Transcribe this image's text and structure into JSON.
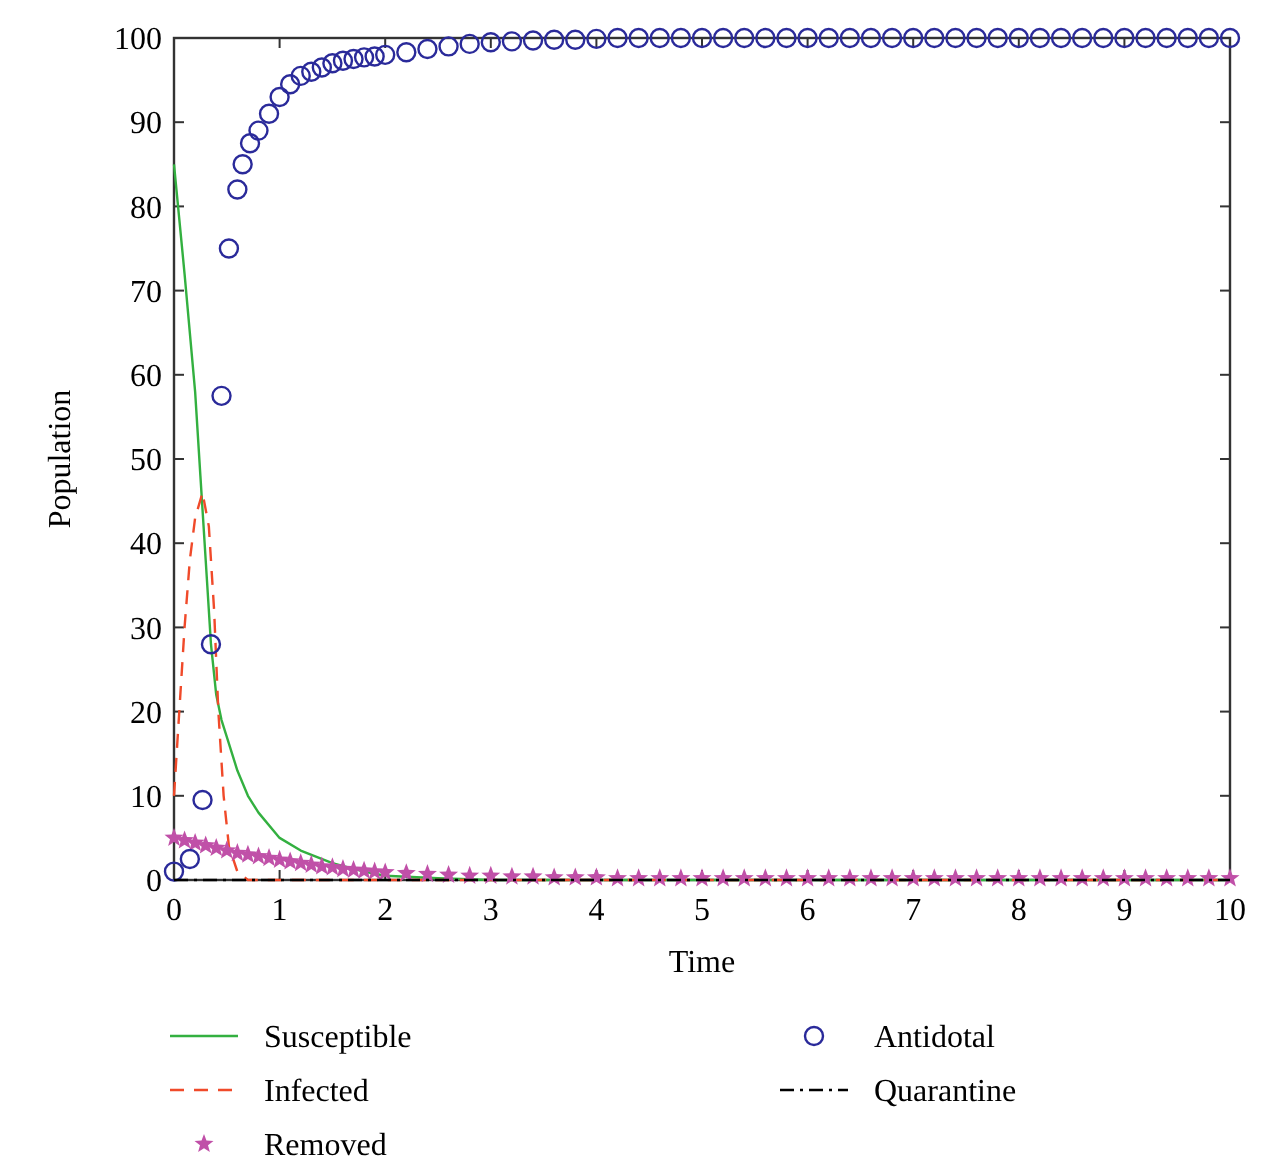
{
  "chart_data": {
    "type": "line",
    "xlabel": "Time",
    "ylabel": "Population",
    "xlim": [
      0,
      10
    ],
    "ylim": [
      0,
      100
    ],
    "xticks": [
      0,
      1,
      2,
      3,
      4,
      5,
      6,
      7,
      8,
      9,
      10
    ],
    "yticks": [
      0,
      10,
      20,
      30,
      40,
      50,
      60,
      70,
      80,
      90,
      100
    ],
    "grid": false,
    "legend": "bottom",
    "series": [
      {
        "name": "Susceptible",
        "color": "#33b040",
        "line_style": "solid",
        "marker": "none",
        "x": [
          0,
          0.1,
          0.2,
          0.25,
          0.3,
          0.35,
          0.4,
          0.45,
          0.5,
          0.6,
          0.7,
          0.8,
          1.0,
          1.2,
          1.5,
          1.8,
          2.0,
          2.5,
          3,
          4,
          5,
          6,
          7,
          8,
          9,
          10
        ],
        "values": [
          85,
          72,
          58,
          48,
          38,
          28,
          22,
          19,
          17,
          13,
          10,
          8,
          5,
          3.5,
          2,
          1,
          0.5,
          0.2,
          0,
          0,
          0,
          0,
          0,
          0,
          0,
          0
        ]
      },
      {
        "name": "Infected",
        "color": "#f04a2a",
        "line_style": "dashed",
        "marker": "none",
        "x": [
          0,
          0.05,
          0.1,
          0.15,
          0.2,
          0.27,
          0.33,
          0.38,
          0.42,
          0.47,
          0.52,
          0.6,
          0.7,
          1,
          2,
          3,
          4,
          5,
          6,
          7,
          8,
          9,
          10
        ],
        "values": [
          10,
          20,
          30,
          38,
          43,
          46,
          42,
          32,
          20,
          10,
          4,
          1,
          0,
          0,
          0,
          0,
          0,
          0,
          0,
          0,
          0,
          0,
          0
        ]
      },
      {
        "name": "Removed",
        "type": "scatter",
        "color": "#c050a8",
        "marker": "star",
        "x": [
          0,
          0.1,
          0.2,
          0.3,
          0.4,
          0.5,
          0.6,
          0.7,
          0.8,
          0.9,
          1.0,
          1.1,
          1.2,
          1.3,
          1.4,
          1.5,
          1.6,
          1.7,
          1.8,
          1.9,
          2.0,
          2.2,
          2.4,
          2.6,
          2.8,
          3.0,
          3.2,
          3.4,
          3.6,
          3.8,
          4.0,
          4.2,
          4.4,
          4.6,
          4.8,
          5.0,
          5.2,
          5.4,
          5.6,
          5.8,
          6.0,
          6.2,
          6.4,
          6.6,
          6.8,
          7.0,
          7.2,
          7.4,
          7.6,
          7.8,
          8.0,
          8.2,
          8.4,
          8.6,
          8.8,
          9.0,
          9.2,
          9.4,
          9.6,
          9.8,
          10
        ],
        "values": [
          5,
          4.7,
          4.4,
          4.1,
          3.8,
          3.5,
          3.2,
          3.0,
          2.8,
          2.6,
          2.4,
          2.2,
          2.0,
          1.8,
          1.6,
          1.5,
          1.3,
          1.2,
          1.1,
          1.0,
          0.9,
          0.8,
          0.7,
          0.6,
          0.5,
          0.5,
          0.4,
          0.4,
          0.3,
          0.3,
          0.3,
          0.2,
          0.2,
          0.2,
          0.2,
          0.2,
          0.2,
          0.2,
          0.2,
          0.2,
          0.2,
          0.2,
          0.2,
          0.2,
          0.2,
          0.2,
          0.2,
          0.2,
          0.2,
          0.2,
          0.2,
          0.2,
          0.2,
          0.2,
          0.2,
          0.2,
          0.2,
          0.2,
          0.2,
          0.2,
          0.2
        ]
      },
      {
        "name": "Antidotal",
        "type": "scatter",
        "color": "#2a2a9a",
        "marker": "circle",
        "x": [
          0,
          0.15,
          0.27,
          0.35,
          0.45,
          0.52,
          0.6,
          0.65,
          0.72,
          0.8,
          0.9,
          1.0,
          1.1,
          1.2,
          1.3,
          1.4,
          1.5,
          1.6,
          1.7,
          1.8,
          1.9,
          2.0,
          2.2,
          2.4,
          2.6,
          2.8,
          3.0,
          3.2,
          3.4,
          3.6,
          3.8,
          4.0,
          4.2,
          4.4,
          4.6,
          4.8,
          5.0,
          5.2,
          5.4,
          5.6,
          5.8,
          6.0,
          6.2,
          6.4,
          6.6,
          6.8,
          7.0,
          7.2,
          7.4,
          7.6,
          7.8,
          8.0,
          8.2,
          8.4,
          8.6,
          8.8,
          9.0,
          9.2,
          9.4,
          9.6,
          9.8,
          10
        ],
        "values": [
          1,
          2.5,
          9.5,
          28,
          57.5,
          75,
          82,
          85,
          87.5,
          89,
          91,
          93,
          94.5,
          95.5,
          96,
          96.5,
          97,
          97.3,
          97.5,
          97.7,
          97.8,
          98,
          98.3,
          98.7,
          99,
          99.3,
          99.5,
          99.6,
          99.7,
          99.8,
          99.8,
          99.9,
          100,
          100,
          100,
          100,
          100,
          100,
          100,
          100,
          100,
          100,
          100,
          100,
          100,
          100,
          100,
          100,
          100,
          100,
          100,
          100,
          100,
          100,
          100,
          100,
          100,
          100,
          100,
          100,
          100,
          100
        ]
      },
      {
        "name": "Quarantine",
        "color": "#000000",
        "line_style": "dashdot",
        "marker": "none",
        "x": [
          0,
          10
        ],
        "values": [
          0,
          0
        ]
      }
    ]
  }
}
